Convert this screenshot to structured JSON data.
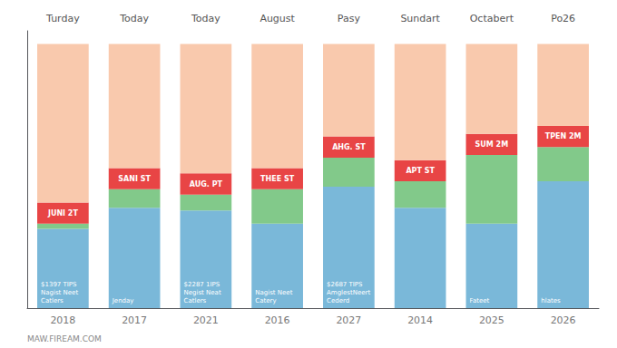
{
  "chart_data": {
    "type": "bar",
    "stacked": true,
    "categories": [
      "2018",
      "2017",
      "2021",
      "2016",
      "2027",
      "2014",
      "2025",
      "2026"
    ],
    "column_headers": [
      "Turday",
      "Today",
      "Today",
      "August",
      "Pasy",
      "Sundart",
      "Octabert",
      "Po26"
    ],
    "series": [
      {
        "color": "#7ab8d9",
        "values": [
          0.3,
          0.38,
          0.37,
          0.32,
          0.46,
          0.38,
          0.32,
          0.48
        ],
        "labels": [
          [
            "$1397 TIPS",
            "Nagist Neet\nCatlers"
          ],
          [
            "Jenday"
          ],
          [
            "$2287 1IPS",
            "Negist Neat\nCatlers"
          ],
          [
            "Nagist Neet\nCatery"
          ],
          [
            "$2687 TIPS",
            "AmglestNeert\nCederd"
          ],
          null,
          [
            "Fateet"
          ],
          [
            "hlates"
          ]
        ]
      },
      {
        "color": "#82c98a",
        "values": [
          0.02,
          0.07,
          0.06,
          0.13,
          0.11,
          0.1,
          0.26,
          0.13
        ]
      },
      {
        "color": "#e84545",
        "values": [
          0.08,
          0.08,
          0.08,
          0.08,
          0.08,
          0.08,
          0.08,
          0.08
        ],
        "labels": [
          "JUNI 2T",
          "SANI ST",
          "AUG. PT",
          "THEE ST",
          "AHG. ST",
          "APT ST",
          "SUM 2M",
          "TPEN 2M"
        ]
      },
      {
        "color": "#f9c9ad",
        "values": [
          0.6,
          0.47,
          0.49,
          0.47,
          0.35,
          0.44,
          0.34,
          0.31
        ]
      }
    ],
    "ylim": [
      0,
      1.05
    ],
    "yticks": [],
    "grid": false,
    "tick_labels": "x",
    "watermark": "MAW.FIREAM.COM"
  }
}
